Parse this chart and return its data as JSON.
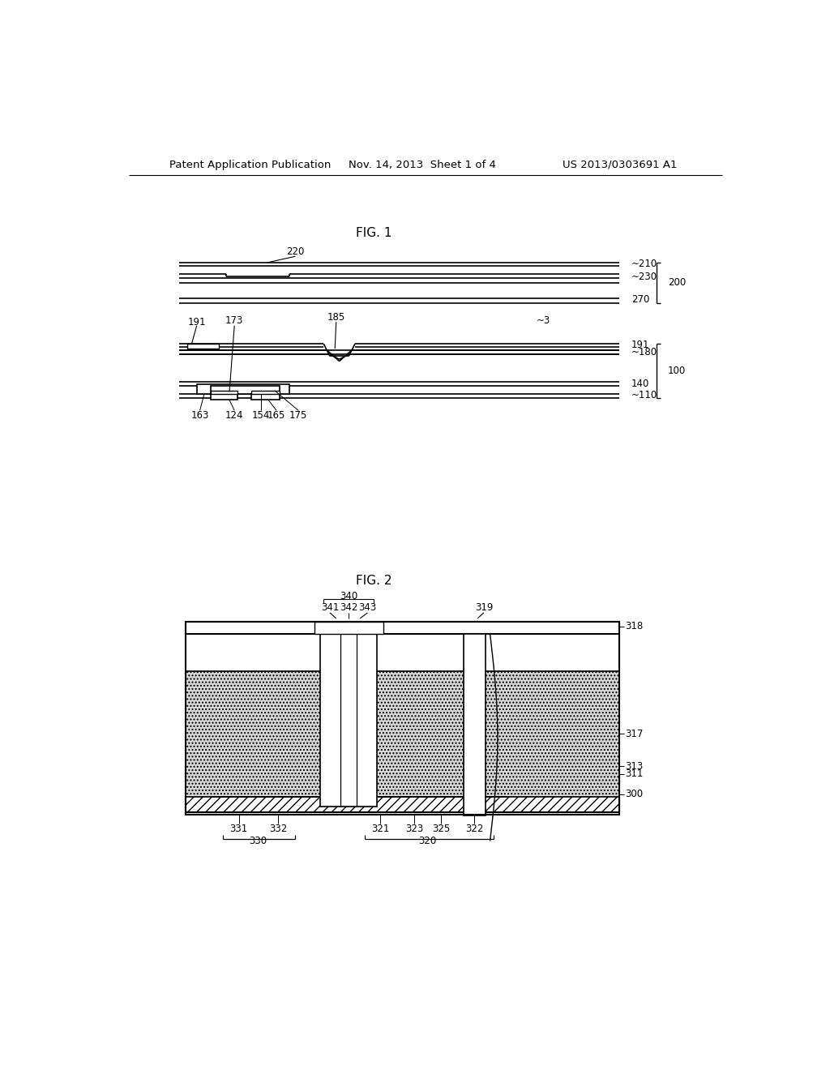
{
  "bg_color": "#ffffff",
  "header_left": "Patent Application Publication",
  "header_center": "Nov. 14, 2013  Sheet 1 of 4",
  "header_right": "US 2013/0303691 A1",
  "fig1_title": "FIG. 1",
  "fig2_title": "FIG. 2"
}
